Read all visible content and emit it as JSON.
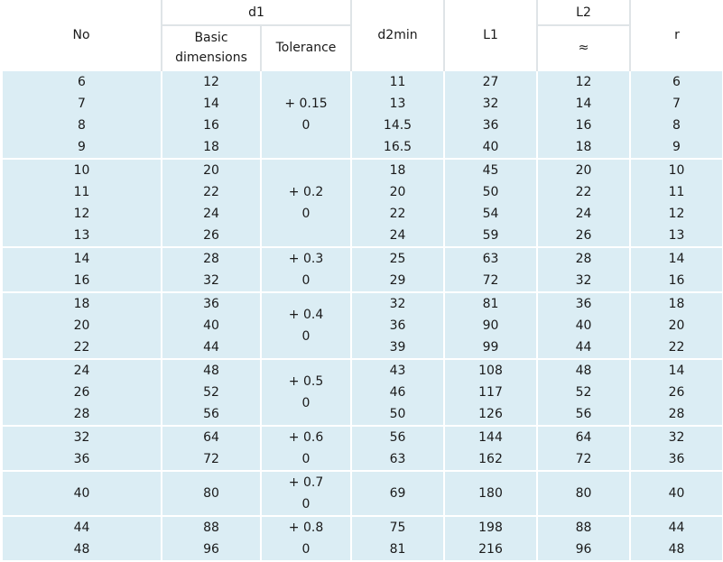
{
  "headers": {
    "no": "No",
    "d1": "d1",
    "basic": "Basic dimensions",
    "tolerance": "Tolerance",
    "d2min": "d2min",
    "l1": "L1",
    "l2": "L2",
    "l2_sub": "≈",
    "r": "r"
  },
  "groups": [
    {
      "rows": [
        [
          "6",
          "12",
          "11",
          "27",
          "12",
          "6"
        ],
        [
          "7",
          "14",
          "13",
          "32",
          "14",
          "7"
        ],
        [
          "8",
          "16",
          "14.5",
          "36",
          "16",
          "8"
        ],
        [
          "9",
          "18",
          "16.5",
          "40",
          "18",
          "9"
        ]
      ],
      "tol_plus": "+ 0.15",
      "tol_zero": "0",
      "tol_rows": 4,
      "tol_start": 1
    },
    {
      "rows": [
        [
          "10",
          "20",
          "18",
          "45",
          "20",
          "10"
        ],
        [
          "11",
          "22",
          "20",
          "50",
          "22",
          "11"
        ],
        [
          "12",
          "24",
          "22",
          "54",
          "24",
          "12"
        ],
        [
          "13",
          "26",
          "24",
          "59",
          "26",
          "13"
        ]
      ],
      "tol_plus": "+ 0.2",
      "tol_zero": "0"
    },
    {
      "rows": [
        [
          "14",
          "28",
          "25",
          "63",
          "28",
          "14"
        ],
        [
          "16",
          "32",
          "29",
          "72",
          "32",
          "16"
        ]
      ],
      "tol_plus": "+ 0.3",
      "tol_zero": "0"
    },
    {
      "rows": [
        [
          "18",
          "36",
          "32",
          "81",
          "36",
          "18"
        ],
        [
          "20",
          "40",
          "36",
          "90",
          "40",
          "20"
        ],
        [
          "22",
          "44",
          "39",
          "99",
          "44",
          "22"
        ]
      ],
      "tol_plus": "+ 0.4",
      "tol_zero": "0"
    },
    {
      "rows": [
        [
          "24",
          "48",
          "43",
          "108",
          "48",
          "14"
        ],
        [
          "26",
          "52",
          "46",
          "117",
          "52",
          "26"
        ],
        [
          "28",
          "56",
          "50",
          "126",
          "56",
          "28"
        ]
      ],
      "tol_plus": "+ 0.5",
      "tol_zero": "0"
    },
    {
      "rows": [
        [
          "32",
          "64",
          "56",
          "144",
          "64",
          "32"
        ],
        [
          "36",
          "72",
          "63",
          "162",
          "72",
          "36"
        ]
      ],
      "tol_plus": "+ 0.6",
      "tol_zero": "0"
    },
    {
      "rows": [
        [
          "40",
          "80",
          "69",
          "180",
          "80",
          "40"
        ]
      ],
      "tol_plus": "+ 0.7",
      "tol_zero": "0"
    },
    {
      "rows": [
        [
          "44",
          "88",
          "75",
          "198",
          "88",
          "44"
        ],
        [
          "48",
          "96",
          "81",
          "216",
          "96",
          "48"
        ]
      ],
      "tol_plus": "+ 0.8",
      "tol_zero": "0"
    }
  ]
}
